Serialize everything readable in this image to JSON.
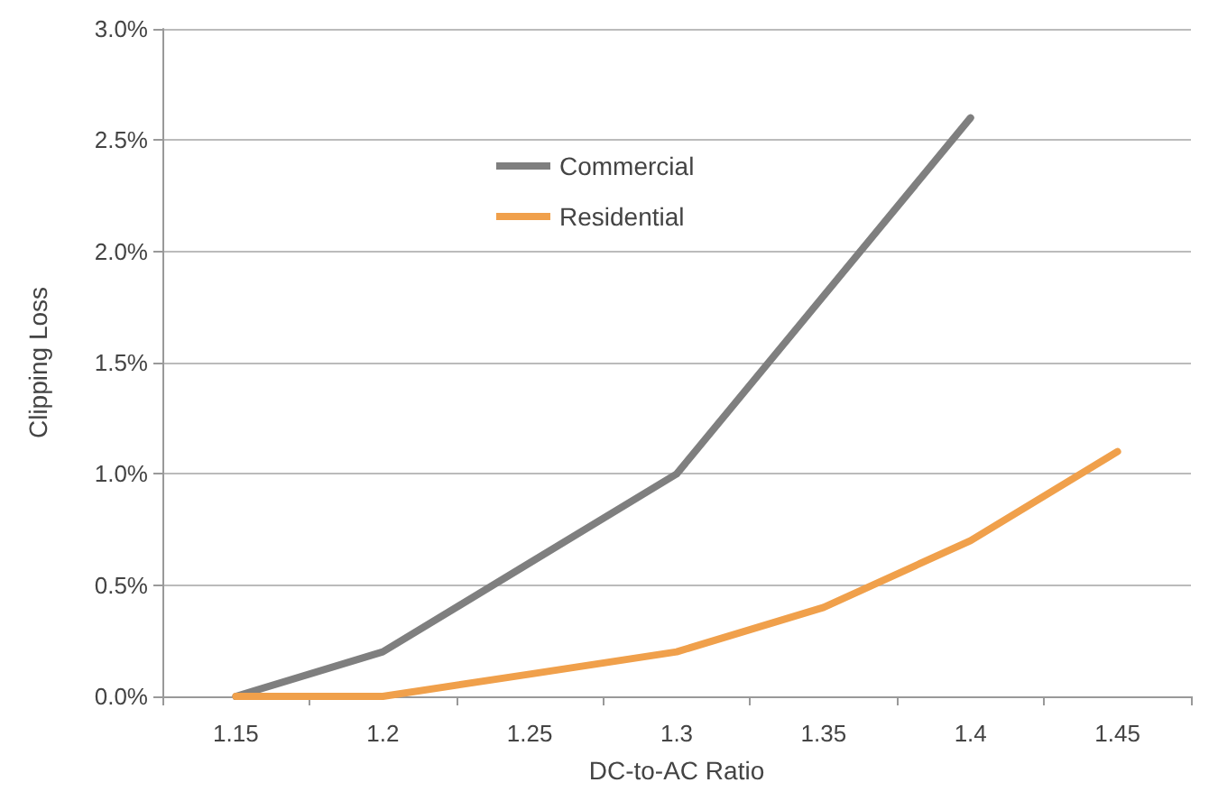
{
  "chart_data": {
    "type": "line",
    "xlabel": "DC-to-AC Ratio",
    "ylabel": "Clipping Loss",
    "categories": [
      "1.15",
      "1.2",
      "1.25",
      "1.3",
      "1.35",
      "1.4",
      "1.45"
    ],
    "series": [
      {
        "name": "Commercial",
        "color": "#7f7f7f",
        "values": [
          0,
          0.2,
          0.6,
          1.0,
          1.8,
          2.6,
          null
        ]
      },
      {
        "name": "Residential",
        "color": "#f0a04b",
        "values": [
          0,
          0,
          0.1,
          0.2,
          0.4,
          0.7,
          1.1
        ]
      }
    ],
    "ylim": [
      0,
      3
    ],
    "yticks": [
      {
        "value": 0,
        "label": "0.0%"
      },
      {
        "value": 0.5,
        "label": "0.5%"
      },
      {
        "value": 1,
        "label": "1.0%"
      },
      {
        "value": 1.5,
        "label": "1.5%"
      },
      {
        "value": 2,
        "label": "2.0%"
      },
      {
        "value": 2.5,
        "label": "2.5%"
      },
      {
        "value": 3,
        "label": "3.0%"
      }
    ],
    "grid": "y",
    "legend": "top",
    "marker": "none",
    "line_style": "solid"
  }
}
